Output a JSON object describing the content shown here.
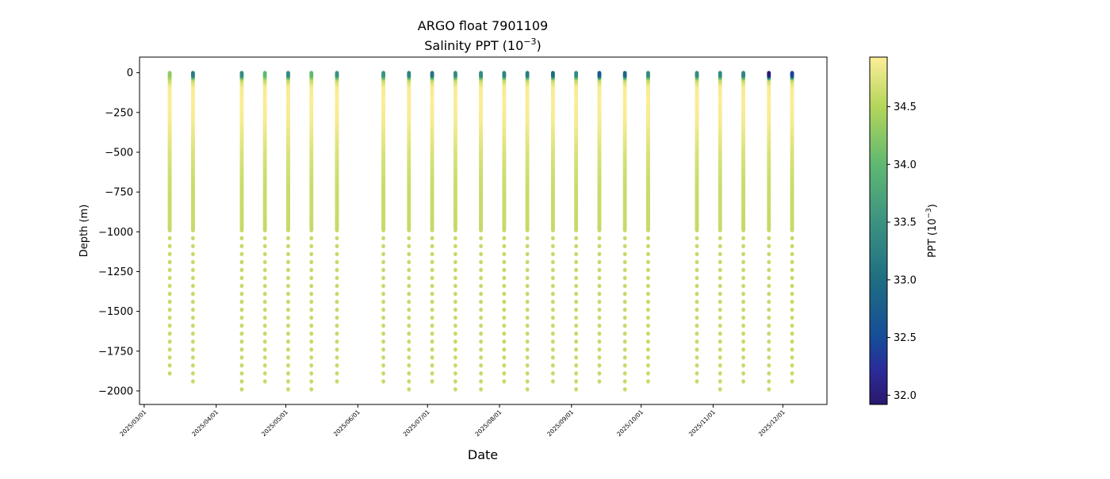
{
  "chart_data": {
    "type": "scatter",
    "title": "ARGO float 7901109",
    "subtitle_prefix": "Salinity PPT (10",
    "subtitle_exp": "−3",
    "subtitle_suffix": ")",
    "xlabel": "Date",
    "ylabel": "Depth (m)",
    "colorbar_label_prefix": "PPT (10",
    "colorbar_label_exp": "−3",
    "colorbar_label_suffix": ")",
    "xlim": [
      "2025-02-27",
      "2025-12-20"
    ],
    "ylim": [
      -2085,
      98
    ],
    "x_ticks": [
      "2025-03-01",
      "2025-04-01",
      "2025-05-01",
      "2025-06-01",
      "2025-07-01",
      "2025-08-01",
      "2025-09-01",
      "2025-10-01",
      "2025-11-01",
      "2025-12-01"
    ],
    "x_tick_labels": [
      "2025/03/01",
      "2025/04/01",
      "2025/05/01",
      "2025/06/01",
      "2025/07/01",
      "2025/08/01",
      "2025/09/01",
      "2025/10/01",
      "2025/11/01",
      "2025/12/01"
    ],
    "y_ticks": [
      0,
      -250,
      -500,
      -750,
      -1000,
      -1250,
      -1500,
      -1750,
      -2000
    ],
    "y_tick_labels": [
      "0",
      "−250",
      "−500",
      "−750",
      "−1000",
      "−1250",
      "−1500",
      "−1750",
      "−2000"
    ],
    "color_range": [
      31.92,
      34.93
    ],
    "colorbar_ticks": [
      32.0,
      32.5,
      33.0,
      33.5,
      34.0,
      34.5
    ],
    "colorbar_tick_labels": [
      "32.0",
      "32.5",
      "33.0",
      "33.5",
      "34.0",
      "34.5"
    ],
    "colormap": [
      {
        "v": 0.0,
        "c": "#2a186c"
      },
      {
        "v": 0.1,
        "c": "#2a2c9a"
      },
      {
        "v": 0.19,
        "c": "#164c98"
      },
      {
        "v": 0.36,
        "c": "#1f6e82"
      },
      {
        "v": 0.52,
        "c": "#3b9181"
      },
      {
        "v": 0.69,
        "c": "#5fb872"
      },
      {
        "v": 0.86,
        "c": "#b5d65a"
      },
      {
        "v": 1.0,
        "c": "#fdee99"
      }
    ],
    "profile_shape": {
      "depths": [
        0,
        15,
        40,
        80,
        150,
        300,
        500,
        700,
        1000,
        2000
      ],
      "salinity_after_surface": [
        null,
        null,
        34.6,
        34.88,
        34.92,
        34.88,
        34.72,
        34.62,
        34.6,
        34.6
      ]
    },
    "dense_sampling_max_depth": -990,
    "deep_sampling_start": -1040,
    "deep_sampling_step": 50,
    "profiles": [
      {
        "date": "2025-03-12",
        "surface_salinity": 34.3,
        "max_depth": -1890
      },
      {
        "date": "2025-03-22",
        "surface_salinity": 33.2,
        "max_depth": -1940
      },
      {
        "date": "2025-04-12",
        "surface_salinity": 33.4,
        "max_depth": -1990
      },
      {
        "date": "2025-04-22",
        "surface_salinity": 34.0,
        "max_depth": -1940
      },
      {
        "date": "2025-05-02",
        "surface_salinity": 33.4,
        "max_depth": -1990
      },
      {
        "date": "2025-05-12",
        "surface_salinity": 34.0,
        "max_depth": -1990
      },
      {
        "date": "2025-05-23",
        "surface_salinity": 33.5,
        "max_depth": -1940
      },
      {
        "date": "2025-06-12",
        "surface_salinity": 33.5,
        "max_depth": -1940
      },
      {
        "date": "2025-06-23",
        "surface_salinity": 33.3,
        "max_depth": -1990
      },
      {
        "date": "2025-07-03",
        "surface_salinity": 33.1,
        "max_depth": -1940
      },
      {
        "date": "2025-07-13",
        "surface_salinity": 33.4,
        "max_depth": -1990
      },
      {
        "date": "2025-07-24",
        "surface_salinity": 33.4,
        "max_depth": -1990
      },
      {
        "date": "2025-08-03",
        "surface_salinity": 33.3,
        "max_depth": -1940
      },
      {
        "date": "2025-08-13",
        "surface_salinity": 33.2,
        "max_depth": -1990
      },
      {
        "date": "2025-08-24",
        "surface_salinity": 33.0,
        "max_depth": -1940
      },
      {
        "date": "2025-09-03",
        "surface_salinity": 33.4,
        "max_depth": -1990
      },
      {
        "date": "2025-09-13",
        "surface_salinity": 32.7,
        "max_depth": -1940
      },
      {
        "date": "2025-09-24",
        "surface_salinity": 32.9,
        "max_depth": -1990
      },
      {
        "date": "2025-10-04",
        "surface_salinity": 33.4,
        "max_depth": -1940
      },
      {
        "date": "2025-10-25",
        "surface_salinity": 33.4,
        "max_depth": -1940
      },
      {
        "date": "2025-11-04",
        "surface_salinity": 33.4,
        "max_depth": -1990
      },
      {
        "date": "2025-11-14",
        "surface_salinity": 33.3,
        "max_depth": -1940
      },
      {
        "date": "2025-11-25",
        "surface_salinity": 32.0,
        "max_depth": -1990
      },
      {
        "date": "2025-12-05",
        "surface_salinity": 32.4,
        "max_depth": -1940
      }
    ]
  }
}
